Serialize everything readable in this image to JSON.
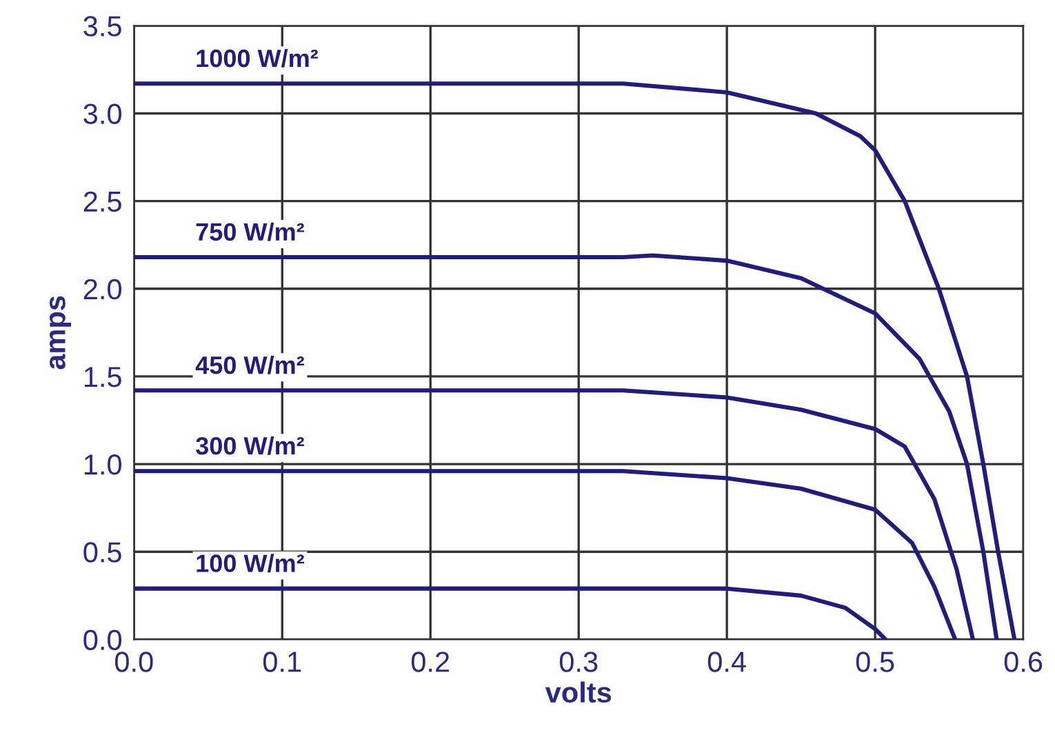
{
  "chart_data": {
    "type": "line",
    "xlabel": "volts",
    "ylabel": "amps",
    "xlim": [
      0,
      0.6
    ],
    "ylim": [
      0,
      3.5
    ],
    "xticks": [
      {
        "value": 0,
        "label": "0.0"
      },
      0.1,
      0.2,
      0.3,
      0.4,
      0.5,
      0.6
    ],
    "yticks": [
      {
        "value": 0,
        "label": "0.0"
      },
      0.5,
      {
        "value": 1,
        "label": "1.0"
      },
      1.5,
      {
        "value": 2,
        "label": "2.0"
      },
      2.5,
      {
        "value": 3,
        "label": "3.0"
      },
      3.5
    ],
    "grid": true,
    "legend": false,
    "marker": "none",
    "line_style": "solid",
    "series": [
      {
        "name": "1000 W/m²",
        "color": "#221c7a",
        "x": [
          0,
          0.33,
          0.4,
          0.46,
          0.49,
          0.5,
          0.52,
          0.543,
          0.562,
          0.573,
          0.583,
          0.594
        ],
        "values": [
          3.17,
          3.17,
          3.12,
          3.0,
          2.87,
          2.79,
          2.5,
          2.0,
          1.5,
          1.0,
          0.5,
          0
        ]
      },
      {
        "name": "750 W/m²",
        "color": "#221c7a",
        "x": [
          0,
          0.33,
          0.35,
          0.4,
          0.45,
          0.5,
          0.53,
          0.55,
          0.562,
          0.573,
          0.582
        ],
        "values": [
          2.18,
          2.18,
          2.19,
          2.16,
          2.06,
          1.86,
          1.6,
          1.3,
          1.0,
          0.5,
          0
        ]
      },
      {
        "name": "450 W/m²",
        "color": "#221c7a",
        "x": [
          0,
          0.33,
          0.4,
          0.45,
          0.5,
          0.52,
          0.54,
          0.555,
          0.566
        ],
        "values": [
          1.42,
          1.42,
          1.38,
          1.31,
          1.2,
          1.1,
          0.8,
          0.4,
          0
        ]
      },
      {
        "name": "300 W/m²",
        "color": "#221c7a",
        "x": [
          0,
          0.33,
          0.4,
          0.45,
          0.5,
          0.525,
          0.54,
          0.554
        ],
        "values": [
          0.96,
          0.96,
          0.92,
          0.86,
          0.74,
          0.55,
          0.3,
          0
        ]
      },
      {
        "name": "100 W/m²",
        "color": "#221c7a",
        "x": [
          0,
          0.4,
          0.45,
          0.48,
          0.5,
          0.507
        ],
        "values": [
          0.29,
          0.29,
          0.25,
          0.18,
          0.06,
          0
        ]
      }
    ]
  }
}
